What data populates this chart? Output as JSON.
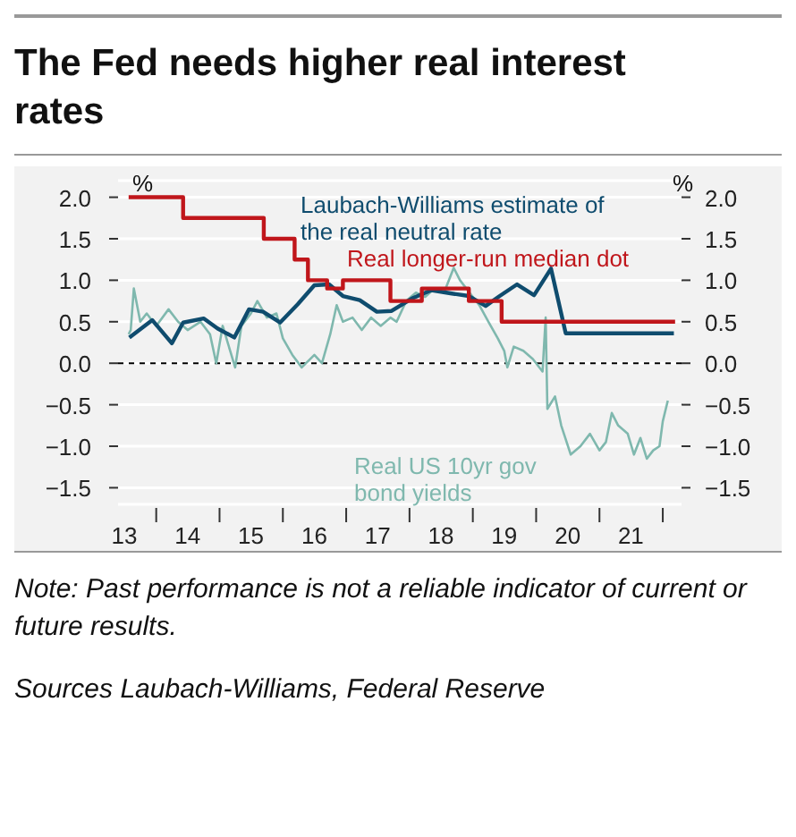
{
  "chart_data": {
    "type": "line",
    "title": "The Fed needs higher real interest rates",
    "ylabel": "%",
    "y2label": "%",
    "annotations": [
      "Note: Past performance is not a reliable indicator of current or future results.",
      "Sources Laubach-Williams, Federal Reserve"
    ],
    "series": [
      {
        "name": "Real US 10yr gov bond yields",
        "color": "#7fb8ae",
        "type": "line",
        "x": [
          "2013-07-26",
          "2013-08-07",
          "2013-08-25",
          "2013-10-01",
          "2013-11-07",
          "2014-01-01",
          "2014-03-13",
          "2014-05-07",
          "2014-07-01",
          "2014-09-13",
          "2014-11-07",
          "2014-12-13",
          "2015-01-19",
          "2015-04-01",
          "2015-05-07",
          "2015-07-01",
          "2015-08-07",
          "2015-10-01",
          "2015-11-25",
          "2016-01-01",
          "2016-02-25",
          "2016-04-19",
          "2016-07-01",
          "2016-08-14",
          "2016-10-01",
          "2016-11-07",
          "2016-12-13",
          "2017-02-07",
          "2017-04-01",
          "2017-05-25",
          "2017-07-19",
          "2017-09-13",
          "2017-10-19",
          "2017-12-13",
          "2018-02-07",
          "2018-04-01",
          "2018-05-25",
          "2018-07-19",
          "2018-09-13",
          "2018-10-19",
          "2018-12-13",
          "2019-02-07",
          "2019-04-01",
          "2019-05-25",
          "2019-07-01",
          "2019-07-19",
          "2019-08-25",
          "2019-10-19",
          "2019-12-13",
          "2020-02-07",
          "2020-02-25",
          "2020-03-06",
          "2020-04-19",
          "2020-05-25",
          "2020-07-19",
          "2020-09-13",
          "2020-11-07",
          "2021-01-01",
          "2021-02-07",
          "2021-03-13",
          "2021-04-19",
          "2021-06-13",
          "2021-07-19",
          "2021-08-25",
          "2021-10-01",
          "2021-11-07",
          "2021-12-13",
          "2022-01-01",
          "2022-01-30"
        ],
        "values": [
          0.35,
          0.4,
          0.9,
          0.5,
          0.6,
          0.45,
          0.65,
          0.5,
          0.4,
          0.5,
          0.35,
          0.0,
          0.45,
          -0.05,
          0.45,
          0.6,
          0.75,
          0.55,
          0.6,
          0.3,
          0.1,
          -0.05,
          0.1,
          0.0,
          0.35,
          0.7,
          0.5,
          0.55,
          0.4,
          0.55,
          0.45,
          0.55,
          0.5,
          0.75,
          0.85,
          0.8,
          0.9,
          0.85,
          1.15,
          1.0,
          0.85,
          0.7,
          0.5,
          0.3,
          0.15,
          -0.05,
          0.2,
          0.15,
          0.05,
          -0.1,
          0.55,
          -0.55,
          -0.4,
          -0.75,
          -1.1,
          -1.0,
          -0.85,
          -1.05,
          -0.95,
          -0.6,
          -0.75,
          -0.85,
          -1.1,
          -0.9,
          -1.15,
          -1.05,
          -1.0,
          -0.7,
          -0.45
        ]
      },
      {
        "name": "Laubach-Williams estimate of the real neutral rate",
        "color": "#0f4c6e",
        "type": "line",
        "x": [
          "2013-07-30",
          "2013-12-09",
          "2014-04-01",
          "2014-06-05",
          "2014-10-01",
          "2014-12-20",
          "2015-03-27",
          "2015-06-20",
          "2015-09-09",
          "2015-12-16",
          "2016-03-27",
          "2016-07-01",
          "2016-09-24",
          "2016-12-13",
          "2017-03-20",
          "2017-06-27",
          "2017-09-20",
          "2018-01-15",
          "2018-05-07",
          "2018-09-02",
          "2018-12-09",
          "2019-03-16",
          "2019-06-05",
          "2019-09-13",
          "2019-12-20",
          "2020-03-27",
          "2020-06-20",
          "2022-03-06"
        ],
        "values": [
          0.31,
          0.52,
          0.24,
          0.49,
          0.54,
          0.42,
          0.31,
          0.65,
          0.62,
          0.49,
          0.71,
          0.94,
          0.95,
          0.81,
          0.76,
          0.62,
          0.63,
          0.78,
          0.88,
          0.84,
          0.81,
          0.69,
          0.81,
          0.95,
          0.82,
          1.14,
          0.36,
          0.36
        ]
      },
      {
        "name": "Real longer-run median dot",
        "color": "#c0161b",
        "type": "step",
        "x": [
          "2013-07-26",
          "2014-06-05",
          "2015-09-13",
          "2016-03-09",
          "2016-05-25",
          "2016-09-13",
          "2016-12-13",
          "2017-09-13",
          "2018-03-13",
          "2018-12-09",
          "2019-06-16",
          "2022-03-13"
        ],
        "values": [
          2.0,
          1.75,
          1.5,
          1.25,
          1.0,
          0.9,
          1.0,
          0.75,
          0.9,
          0.75,
          0.5,
          0.5
        ]
      }
    ],
    "xlim": [
      "2013-05-26",
      "2022-04-19"
    ],
    "xticks": [
      {
        "value": "2013-07-01",
        "label": "13"
      },
      {
        "value": "2014-01-01",
        "label": null
      },
      {
        "value": "2014-07-01",
        "label": "14"
      },
      {
        "value": "2015-01-01",
        "label": null
      },
      {
        "value": "2015-07-01",
        "label": "15"
      },
      {
        "value": "2016-01-01",
        "label": null
      },
      {
        "value": "2016-07-01",
        "label": "16"
      },
      {
        "value": "2017-01-01",
        "label": null
      },
      {
        "value": "2017-07-01",
        "label": "17"
      },
      {
        "value": "2018-01-01",
        "label": null
      },
      {
        "value": "2018-07-01",
        "label": "18"
      },
      {
        "value": "2019-01-01",
        "label": null
      },
      {
        "value": "2019-07-01",
        "label": "19"
      },
      {
        "value": "2020-01-01",
        "label": null
      },
      {
        "value": "2020-07-01",
        "label": "20"
      },
      {
        "value": "2021-01-01",
        "label": null
      },
      {
        "value": "2021-07-01",
        "label": "21"
      },
      {
        "value": "2022-01-01",
        "label": null
      }
    ],
    "ylim": [
      -1.7,
      2.2
    ],
    "yticks": [
      {
        "value": -1.5,
        "label": "−1.5"
      },
      {
        "value": -1,
        "label": "−1.0"
      },
      {
        "value": -0.5,
        "label": "−0.5"
      },
      {
        "value": 0,
        "label": "0.0"
      },
      {
        "value": 0.5,
        "label": "0.5"
      },
      {
        "value": 1,
        "label": "1.0"
      },
      {
        "value": 1.5,
        "label": "1.5"
      },
      {
        "value": 2,
        "label": "2.0"
      }
    ],
    "y2lim": [
      -1.7,
      2.2
    ],
    "y2ticks": [
      {
        "value": -1.5,
        "label": "−1.5"
      },
      {
        "value": -1,
        "label": "−1.0"
      },
      {
        "value": -0.5,
        "label": "−0.5"
      },
      {
        "value": 0,
        "label": "0.0"
      },
      {
        "value": 0.5,
        "label": "0.5"
      },
      {
        "value": 1,
        "label": "1.0"
      },
      {
        "value": 1.5,
        "label": "1.5"
      },
      {
        "value": 2,
        "label": "2.0"
      }
    ],
    "ref_lines": [
      {
        "axis": "y",
        "value": 0,
        "color": "#000000",
        "line_style": "dashed"
      }
    ],
    "grid": "y"
  }
}
